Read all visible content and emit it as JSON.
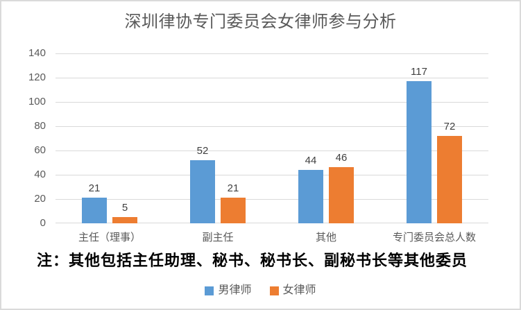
{
  "title": "深圳律协专门委员会女律师参与分析",
  "note": "注：其他包括主任助理、秘书、秘书长、副秘书长等其他委员",
  "chart_data": {
    "type": "bar",
    "title": "深圳律协专门委员会女律师参与分析",
    "categories": [
      "主任（理事）",
      "副主任",
      "其他",
      "专门委员会总人数"
    ],
    "series": [
      {
        "name": "男律师",
        "color": "#5B9BD5",
        "values": [
          21,
          52,
          44,
          117
        ]
      },
      {
        "name": "女律师",
        "color": "#ED7D31",
        "values": [
          5,
          21,
          46,
          72
        ]
      }
    ],
    "xlabel": "",
    "ylabel": "",
    "ylim": [
      0,
      140
    ],
    "yticks": [
      0,
      20,
      40,
      60,
      80,
      100,
      120,
      140
    ],
    "grid": true,
    "legend_position": "bottom",
    "annotation": "注：其他包括主任助理、秘书、秘书长、副秘书长等其他委员"
  },
  "colors": {
    "male_bar": "#5B9BD5",
    "female_bar": "#ED7D31",
    "gridline": "#D9D9D9",
    "axis_text": "#595959",
    "value_label": "#404040",
    "title_text": "#595959",
    "note_text": "#000000",
    "frame_border": "#DADADA"
  }
}
